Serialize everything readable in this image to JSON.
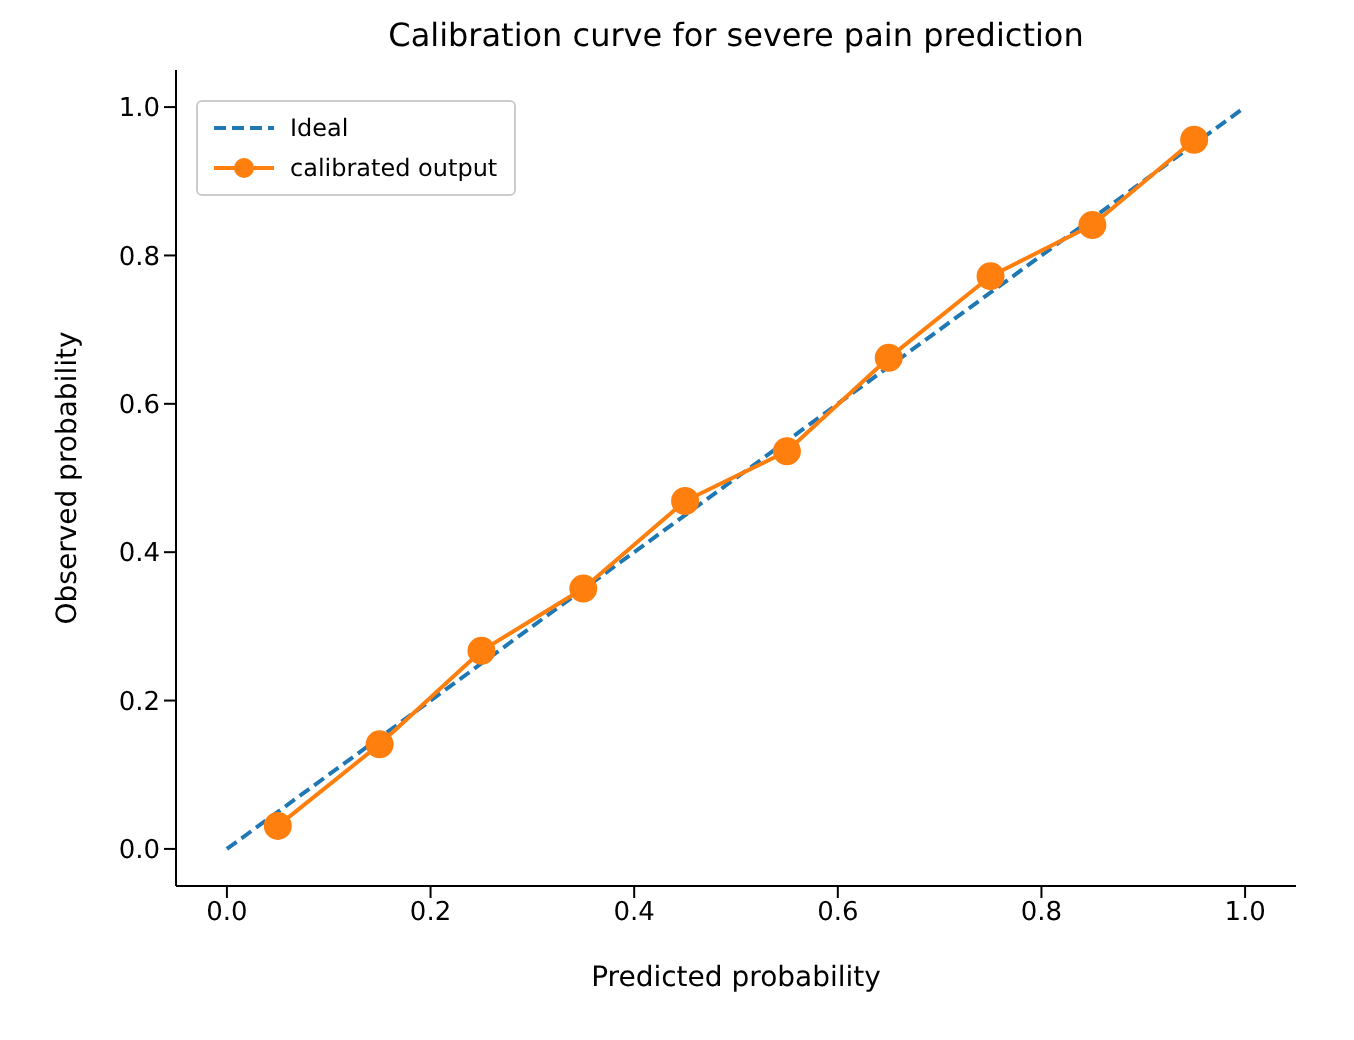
{
  "chart_data": {
    "type": "line",
    "title": "Calibration curve for severe pain prediction",
    "xlabel": "Predicted probability",
    "ylabel": "Observed probability",
    "xlim": [
      -0.05,
      1.05
    ],
    "ylim": [
      -0.05,
      1.05
    ],
    "xticks": [
      {
        "value": 0,
        "label": "0.0"
      },
      0.2,
      0.4,
      0.6,
      0.8,
      {
        "value": 1,
        "label": "1.0"
      }
    ],
    "yticks": [
      {
        "value": 0,
        "label": "0.0"
      },
      0.2,
      0.4,
      0.6,
      0.8,
      {
        "value": 1,
        "label": "1.0"
      }
    ],
    "series": [
      {
        "name": "Ideal",
        "color": "#1f77b4",
        "x": [
          0,
          1
        ],
        "values": [
          0,
          1
        ],
        "line_style": "dashed",
        "marker": "none"
      },
      {
        "name": "calibrated output",
        "color": "#ff7f0e",
        "x": [
          0.05,
          0.15,
          0.25,
          0.35,
          0.45,
          0.55,
          0.65,
          0.75,
          0.85,
          0.95
        ],
        "values": [
          0.031,
          0.141,
          0.267,
          0.351,
          0.469,
          0.536,
          0.662,
          0.772,
          0.841,
          0.956
        ],
        "line_style": "solid",
        "marker": "circle"
      }
    ],
    "legend": "top left",
    "grid": false
  }
}
